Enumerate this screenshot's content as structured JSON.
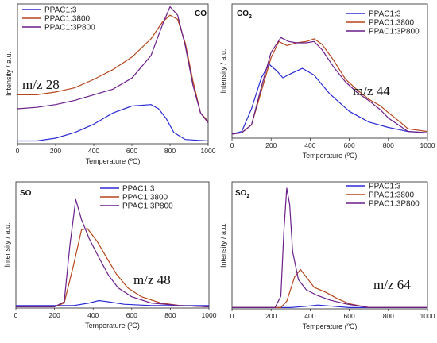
{
  "colors": {
    "s0": "#2b2bd6",
    "s1": "#b5461c",
    "s2": "#6a1f8a"
  },
  "chart_data": [
    {
      "type": "line",
      "title": "CO",
      "annotation": "m/z 28",
      "xlabel": "Temperature (ºC)",
      "ylabel": "Intensity / a.u.",
      "xlim": [
        0,
        1000
      ],
      "ylim": [
        0,
        1
      ],
      "xticks": [
        0,
        200,
        400,
        600,
        800,
        1000
      ],
      "legend_position": "top-left",
      "series": [
        {
          "name": "PPAC1:3",
          "points": [
            [
              0,
              0.02
            ],
            [
              100,
              0.02
            ],
            [
              200,
              0.04
            ],
            [
              300,
              0.08
            ],
            [
              400,
              0.14
            ],
            [
              500,
              0.22
            ],
            [
              600,
              0.27
            ],
            [
              700,
              0.28
            ],
            [
              740,
              0.25
            ],
            [
              780,
              0.18
            ],
            [
              820,
              0.08
            ],
            [
              880,
              0.03
            ],
            [
              1000,
              0.02
            ]
          ]
        },
        {
          "name": "PPAC1:3800",
          "points": [
            [
              0,
              0.35
            ],
            [
              100,
              0.35
            ],
            [
              200,
              0.37
            ],
            [
              300,
              0.4
            ],
            [
              400,
              0.46
            ],
            [
              500,
              0.53
            ],
            [
              600,
              0.62
            ],
            [
              700,
              0.75
            ],
            [
              760,
              0.87
            ],
            [
              800,
              0.92
            ],
            [
              840,
              0.89
            ],
            [
              880,
              0.72
            ],
            [
              920,
              0.45
            ],
            [
              960,
              0.22
            ],
            [
              1000,
              0.16
            ]
          ]
        },
        {
          "name": "PPAC1:3P800",
          "points": [
            [
              0,
              0.25
            ],
            [
              100,
              0.26
            ],
            [
              200,
              0.28
            ],
            [
              300,
              0.31
            ],
            [
              400,
              0.35
            ],
            [
              500,
              0.39
            ],
            [
              600,
              0.47
            ],
            [
              700,
              0.63
            ],
            [
              760,
              0.85
            ],
            [
              800,
              0.98
            ],
            [
              840,
              0.92
            ],
            [
              880,
              0.7
            ],
            [
              920,
              0.42
            ],
            [
              960,
              0.22
            ],
            [
              1000,
              0.15
            ]
          ]
        }
      ]
    },
    {
      "type": "line",
      "title": "CO",
      "title_sub": "2",
      "annotation": "m/z 44",
      "xlabel": "Temperature (ºC)",
      "ylabel": "Intensity / a.u.",
      "xlim": [
        0,
        1000
      ],
      "ylim": [
        0,
        1
      ],
      "xticks": [
        0,
        200,
        400,
        600,
        800,
        1000
      ],
      "legend_position": "top-right",
      "series": [
        {
          "name": "PPAC1:3",
          "points": [
            [
              0,
              0.03
            ],
            [
              50,
              0.05
            ],
            [
              100,
              0.22
            ],
            [
              150,
              0.45
            ],
            [
              190,
              0.55
            ],
            [
              230,
              0.5
            ],
            [
              260,
              0.45
            ],
            [
              300,
              0.48
            ],
            [
              360,
              0.52
            ],
            [
              420,
              0.47
            ],
            [
              500,
              0.33
            ],
            [
              600,
              0.2
            ],
            [
              700,
              0.12
            ],
            [
              800,
              0.08
            ],
            [
              900,
              0.05
            ],
            [
              1000,
              0.04
            ]
          ]
        },
        {
          "name": "PPAC1:3800",
          "points": [
            [
              0,
              0.03
            ],
            [
              50,
              0.04
            ],
            [
              100,
              0.1
            ],
            [
              150,
              0.35
            ],
            [
              200,
              0.6
            ],
            [
              240,
              0.72
            ],
            [
              280,
              0.69
            ],
            [
              330,
              0.71
            ],
            [
              380,
              0.72
            ],
            [
              420,
              0.74
            ],
            [
              460,
              0.7
            ],
            [
              520,
              0.58
            ],
            [
              580,
              0.44
            ],
            [
              640,
              0.36
            ],
            [
              700,
              0.29
            ],
            [
              760,
              0.24
            ],
            [
              800,
              0.19
            ],
            [
              860,
              0.12
            ],
            [
              900,
              0.07
            ],
            [
              1000,
              0.05
            ]
          ]
        },
        {
          "name": "PPAC1:3P800",
          "points": [
            [
              0,
              0.03
            ],
            [
              50,
              0.04
            ],
            [
              100,
              0.1
            ],
            [
              150,
              0.38
            ],
            [
              200,
              0.64
            ],
            [
              250,
              0.75
            ],
            [
              290,
              0.72
            ],
            [
              330,
              0.71
            ],
            [
              380,
              0.71
            ],
            [
              420,
              0.72
            ],
            [
              460,
              0.66
            ],
            [
              520,
              0.53
            ],
            [
              580,
              0.42
            ],
            [
              640,
              0.34
            ],
            [
              700,
              0.28
            ],
            [
              760,
              0.21
            ],
            [
              800,
              0.15
            ],
            [
              860,
              0.09
            ],
            [
              900,
              0.05
            ],
            [
              1000,
              0.04
            ]
          ]
        }
      ]
    },
    {
      "type": "line",
      "title": "SO",
      "annotation": "m/z 48",
      "xlabel": "Temperature (ºC)",
      "ylabel": "Intensity / a.u.",
      "xlim": [
        0,
        1000
      ],
      "ylim": [
        0,
        1
      ],
      "xticks": [
        0,
        200,
        400,
        600,
        800,
        1000
      ],
      "legend_position": "top-right",
      "series": [
        {
          "name": "PPAC1:3",
          "points": [
            [
              0,
              0.02
            ],
            [
              200,
              0.02
            ],
            [
              300,
              0.02
            ],
            [
              380,
              0.04
            ],
            [
              430,
              0.06
            ],
            [
              480,
              0.05
            ],
            [
              560,
              0.03
            ],
            [
              700,
              0.02
            ],
            [
              1000,
              0.02
            ]
          ]
        },
        {
          "name": "PPAC1:3800",
          "points": [
            [
              0,
              0.01
            ],
            [
              200,
              0.01
            ],
            [
              250,
              0.04
            ],
            [
              300,
              0.35
            ],
            [
              340,
              0.62
            ],
            [
              370,
              0.63
            ],
            [
              420,
              0.53
            ],
            [
              470,
              0.4
            ],
            [
              520,
              0.27
            ],
            [
              580,
              0.16
            ],
            [
              650,
              0.09
            ],
            [
              750,
              0.04
            ],
            [
              850,
              0.02
            ],
            [
              1000,
              0.01
            ]
          ]
        },
        {
          "name": "PPAC1:3P800",
          "points": [
            [
              0,
              0.01
            ],
            [
              200,
              0.01
            ],
            [
              250,
              0.05
            ],
            [
              280,
              0.5
            ],
            [
              310,
              0.86
            ],
            [
              340,
              0.7
            ],
            [
              380,
              0.55
            ],
            [
              430,
              0.4
            ],
            [
              480,
              0.26
            ],
            [
              530,
              0.16
            ],
            [
              600,
              0.09
            ],
            [
              700,
              0.04
            ],
            [
              850,
              0.02
            ],
            [
              1000,
              0.01
            ]
          ]
        }
      ]
    },
    {
      "type": "line",
      "title": "SO",
      "title_sub": "2",
      "annotation": "m/z 64",
      "xlabel": "Temperature (ºC)",
      "ylabel": "Intensity / a.u.",
      "xlim": [
        0,
        1000
      ],
      "ylim": [
        0,
        1
      ],
      "xticks": [
        0,
        200,
        400,
        600,
        800,
        1000
      ],
      "legend_position": "top-right",
      "series": [
        {
          "name": "PPAC1:3",
          "points": [
            [
              0,
              0.01
            ],
            [
              300,
              0.01
            ],
            [
              380,
              0.02
            ],
            [
              440,
              0.03
            ],
            [
              520,
              0.02
            ],
            [
              600,
              0.01
            ],
            [
              1000,
              0.01
            ]
          ]
        },
        {
          "name": "PPAC1:3800",
          "points": [
            [
              0,
              0.01
            ],
            [
              250,
              0.01
            ],
            [
              280,
              0.06
            ],
            [
              320,
              0.25
            ],
            [
              350,
              0.31
            ],
            [
              380,
              0.25
            ],
            [
              420,
              0.17
            ],
            [
              480,
              0.13
            ],
            [
              540,
              0.08
            ],
            [
              600,
              0.04
            ],
            [
              700,
              0.01
            ],
            [
              1000,
              0.01
            ]
          ]
        },
        {
          "name": "PPAC1:3P800",
          "points": [
            [
              0,
              0.01
            ],
            [
              220,
              0.01
            ],
            [
              250,
              0.1
            ],
            [
              265,
              0.6
            ],
            [
              280,
              0.95
            ],
            [
              295,
              0.82
            ],
            [
              310,
              0.45
            ],
            [
              340,
              0.23
            ],
            [
              380,
              0.15
            ],
            [
              430,
              0.11
            ],
            [
              500,
              0.07
            ],
            [
              580,
              0.04
            ],
            [
              700,
              0.01
            ],
            [
              1000,
              0.01
            ]
          ]
        }
      ]
    }
  ]
}
